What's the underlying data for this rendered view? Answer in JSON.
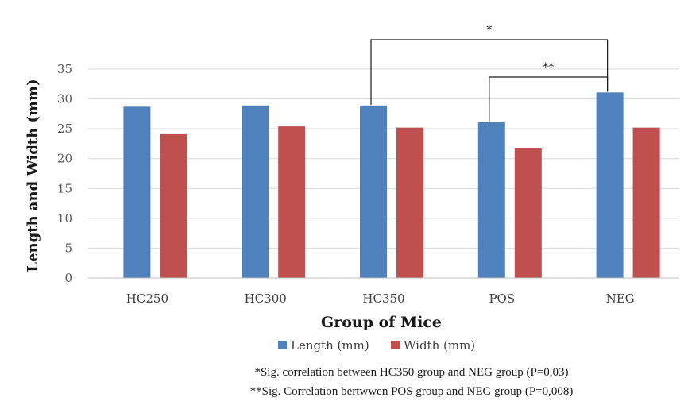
{
  "chart_data": {
    "type": "bar",
    "categories": [
      "HC250",
      "HC300",
      "HC350",
      "POS",
      "NEG"
    ],
    "series": [
      {
        "name": "Length (mm)",
        "color": "#4F81BD",
        "values": [
          28.7,
          28.9,
          28.9,
          26.1,
          31.1
        ]
      },
      {
        "name": "Width (mm)",
        "color": "#C0504D",
        "values": [
          24.1,
          25.4,
          25.2,
          21.7,
          25.2
        ]
      }
    ],
    "xlabel": "Group of Mice",
    "ylabel": "Length and Width (mm)",
    "ylim": [
      0,
      35
    ],
    "yticks": [
      0,
      5,
      10,
      15,
      20,
      25,
      30,
      35
    ],
    "grid": true,
    "legend_position": "bottom",
    "significance": [
      {
        "from": "HC350",
        "to": "NEG",
        "label": "*"
      },
      {
        "from": "POS",
        "to": "NEG",
        "label": "**"
      }
    ],
    "notes": [
      "*Sig. correlation between HC350 group and NEG group (P=0,03)",
      "**Sig. Correlation bertwwen POS group and NEG group (P=0,008)"
    ]
  }
}
